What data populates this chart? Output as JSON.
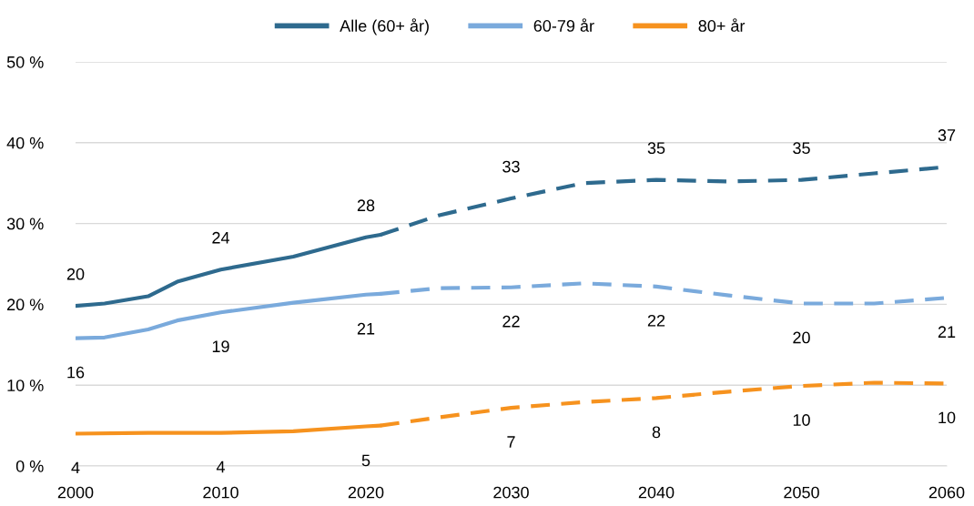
{
  "chart_data": {
    "type": "line",
    "legend": "top",
    "grid": "y",
    "line_style": "solid",
    "marker": "none",
    "xlim": [
      2000,
      2060
    ],
    "xticks": [
      2000,
      2010,
      2020,
      2030,
      2040,
      2050,
      2060
    ],
    "ylim": [
      0,
      50
    ],
    "yticks": [
      {
        "value": 0,
        "label": "0 %"
      },
      {
        "value": 10,
        "label": "10 %"
      },
      {
        "value": 20,
        "label": "20 %"
      },
      {
        "value": 30,
        "label": "30 %"
      },
      {
        "value": 40,
        "label": "40 %"
      },
      {
        "value": 50,
        "label": "50 %"
      }
    ],
    "series": [
      {
        "name": "Alle (60+ år)",
        "color": "#2e6a8e",
        "x": [
          2000,
          2002,
          2005,
          2007,
          2010,
          2015,
          2020,
          2021
        ],
        "values": [
          19.8,
          20.1,
          21.0,
          22.8,
          24.3,
          25.9,
          28.3,
          28.6
        ],
        "value_labels": [
          "20",
          null,
          null,
          null,
          "24",
          null,
          "28",
          null
        ]
      },
      {
        "name": "60-79 år",
        "color": "#7aaadc",
        "x": [
          2000,
          2002,
          2005,
          2007,
          2010,
          2015,
          2020,
          2021
        ],
        "values": [
          15.8,
          15.9,
          16.9,
          18.0,
          19.0,
          20.2,
          21.2,
          21.3
        ],
        "value_labels": [
          "16",
          null,
          null,
          null,
          "19",
          null,
          "21",
          null
        ]
      },
      {
        "name": "80+ år",
        "color": "#f6921e",
        "x": [
          2000,
          2005,
          2010,
          2015,
          2020,
          2021
        ],
        "values": [
          4.0,
          4.1,
          4.1,
          4.3,
          4.9,
          5.0
        ],
        "value_labels": [
          "4",
          null,
          "4",
          null,
          "5",
          null
        ]
      },
      {
        "color": "#2e6a8e",
        "line_style": "dashed",
        "x": [
          2021,
          2025,
          2030,
          2035,
          2040,
          2045,
          2050,
          2055,
          2060
        ],
        "values": [
          28.6,
          31.0,
          33.1,
          35.0,
          35.4,
          35.2,
          35.4,
          36.2,
          37.0
        ],
        "value_labels": [
          null,
          null,
          "33",
          null,
          "35",
          null,
          "35",
          null,
          "37"
        ]
      },
      {
        "color": "#7aaadc",
        "line_style": "dashed",
        "x": [
          2021,
          2025,
          2030,
          2035,
          2040,
          2045,
          2050,
          2055,
          2060
        ],
        "values": [
          21.3,
          22.0,
          22.1,
          22.6,
          22.2,
          21.1,
          20.1,
          20.1,
          20.8
        ],
        "value_labels": [
          null,
          null,
          "22",
          null,
          "22",
          null,
          "20",
          null,
          "21"
        ]
      },
      {
        "color": "#f6921e",
        "line_style": "dashed",
        "x": [
          2021,
          2025,
          2030,
          2035,
          2040,
          2045,
          2050,
          2055,
          2060
        ],
        "values": [
          5.0,
          6.0,
          7.2,
          7.9,
          8.4,
          9.2,
          9.9,
          10.3,
          10.2
        ],
        "value_labels": [
          null,
          null,
          "7",
          null,
          "8",
          null,
          "10",
          null,
          "10"
        ]
      }
    ]
  }
}
